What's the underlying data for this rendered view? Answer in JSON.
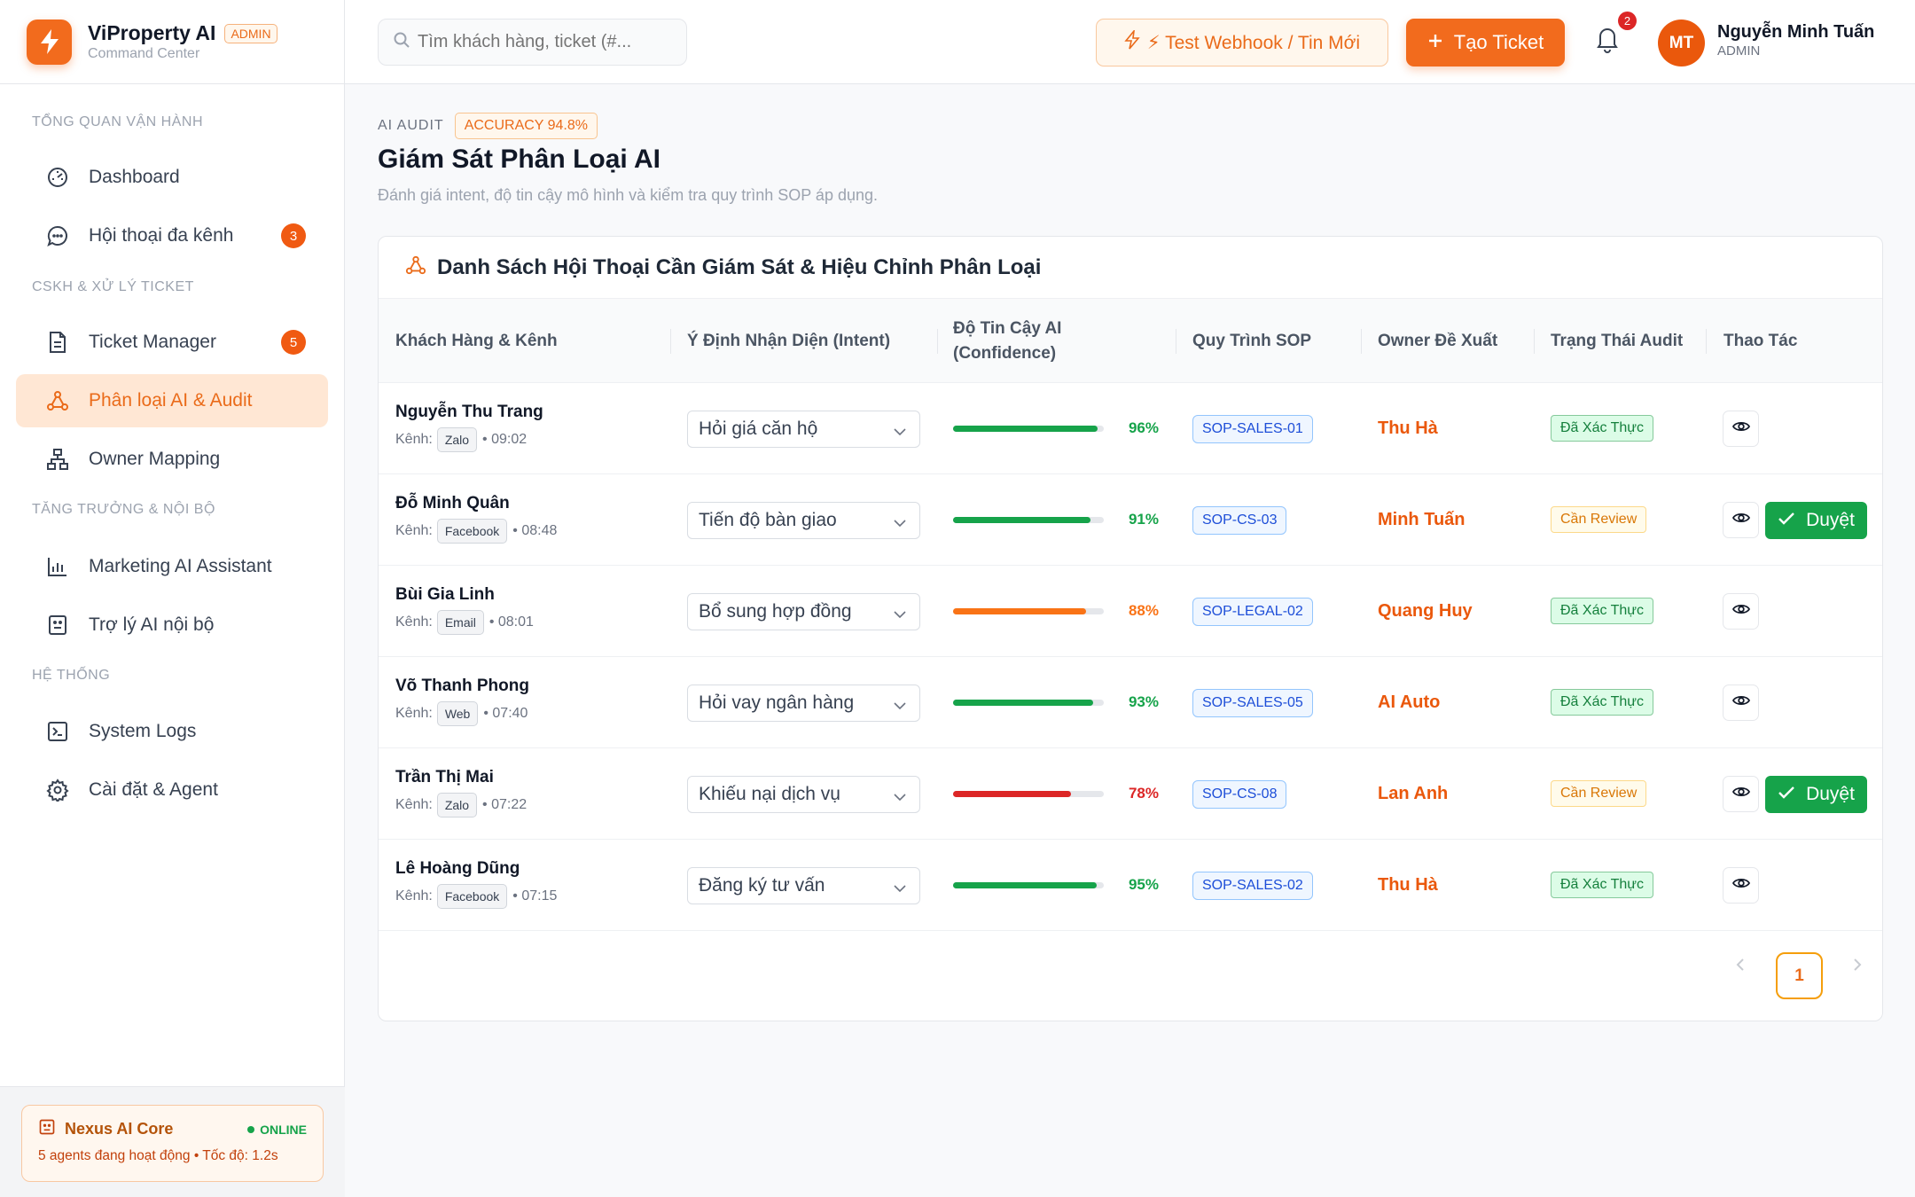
{
  "brand": {
    "name": "ViProperty AI",
    "badge": "ADMIN",
    "subtitle": "Command Center"
  },
  "sidebar": {
    "sections": [
      {
        "title": "TỔNG QUAN VẬN HÀNH"
      },
      {
        "title": "CSKH & XỬ LÝ TICKET"
      },
      {
        "title": "TĂNG TRƯỞNG & NỘI BỘ"
      },
      {
        "title": "HỆ THỐNG"
      }
    ],
    "items": [
      {
        "label": "Dashboard",
        "icon": "gauge-icon"
      },
      {
        "label": "Hội thoại đa kênh",
        "icon": "chat-icon",
        "count": "3"
      },
      {
        "label": "Ticket Manager",
        "icon": "document-icon",
        "count": "5"
      },
      {
        "label": "Phân loại AI & Audit",
        "icon": "network-icon",
        "active": true
      },
      {
        "label": "Owner Mapping",
        "icon": "hierarchy-icon"
      },
      {
        "label": "Marketing AI Assistant",
        "icon": "bar-chart-icon"
      },
      {
        "label": "Trợ lý AI nội bộ",
        "icon": "bot-icon"
      },
      {
        "label": "System Logs",
        "icon": "terminal-icon"
      },
      {
        "label": "Cài đặt & Agent",
        "icon": "gear-icon"
      }
    ],
    "footer": {
      "title": "Nexus AI Core",
      "status": "ONLINE",
      "desc": "5 agents đang hoạt động • Tốc độ: 1.2s"
    }
  },
  "topbar": {
    "search_placeholder": "Tìm khách hàng, ticket (#...",
    "webhook_label": "⚡ Test Webhook / Tin Mới",
    "create_label": "Tạo Ticket",
    "notification_count": "2",
    "user": {
      "initials": "MT",
      "name": "Nguyễn Minh Tuấn",
      "role": "ADMIN"
    }
  },
  "page": {
    "eyebrow": "AI AUDIT",
    "accuracy_badge": "ACCURACY 94.8%",
    "title": "Giám Sát Phân Loại AI",
    "description": "Đánh giá intent, độ tin cậy mô hình và kiểm tra quy trình SOP áp dụng."
  },
  "table": {
    "title": "Danh Sách Hội Thoại Cần Giám Sát & Hiệu Chỉnh Phân Loại",
    "headers": {
      "customer": "Khách Hàng & Kênh",
      "intent": "Ý Định Nhận Diện (Intent)",
      "confidence_line1": "Độ Tin Cậy AI",
      "confidence_line2": "(Confidence)",
      "sop": "Quy Trình SOP",
      "owner": "Owner Đề Xuất",
      "status": "Trạng Thái Audit",
      "actions": "Thao Tác"
    },
    "channel_label": "Kênh:",
    "approve_label": "Duyệt",
    "rows": [
      {
        "name": "Nguyễn Thu Trang",
        "channel": "Zalo",
        "time": "• 09:02",
        "intent": "Hỏi giá căn hộ",
        "confidence": 96,
        "confidence_text": "96%",
        "level": "high",
        "sop": "SOP-SALES-01",
        "owner": "Thu Hà",
        "status": "Đã Xác Thực",
        "status_type": "ok"
      },
      {
        "name": "Đỗ Minh Quân",
        "channel": "Facebook",
        "time": "• 08:48",
        "intent": "Tiến độ bàn giao",
        "confidence": 91,
        "confidence_text": "91%",
        "level": "high",
        "sop": "SOP-CS-03",
        "owner": "Minh Tuấn",
        "status": "Cần Review",
        "status_type": "review"
      },
      {
        "name": "Bùi Gia Linh",
        "channel": "Email",
        "time": "• 08:01",
        "intent": "Bổ sung hợp đồng",
        "confidence": 88,
        "confidence_text": "88%",
        "level": "medium",
        "sop": "SOP-LEGAL-02",
        "owner": "Quang Huy",
        "status": "Đã Xác Thực",
        "status_type": "ok"
      },
      {
        "name": "Võ Thanh Phong",
        "channel": "Web",
        "time": "• 07:40",
        "intent": "Hỏi vay ngân hàng",
        "confidence": 93,
        "confidence_text": "93%",
        "level": "high",
        "sop": "SOP-SALES-05",
        "owner": "AI Auto",
        "status": "Đã Xác Thực",
        "status_type": "ok"
      },
      {
        "name": "Trần Thị Mai",
        "channel": "Zalo",
        "time": "• 07:22",
        "intent": "Khiếu nại dịch vụ",
        "confidence": 78,
        "confidence_text": "78%",
        "level": "low",
        "sop": "SOP-CS-08",
        "owner": "Lan Anh",
        "status": "Cần Review",
        "status_type": "review"
      },
      {
        "name": "Lê Hoàng Dũng",
        "channel": "Facebook",
        "time": "• 07:15",
        "intent": "Đăng ký tư vấn",
        "confidence": 95,
        "confidence_text": "95%",
        "level": "high",
        "sop": "SOP-SALES-02",
        "owner": "Thu Hà",
        "status": "Đã Xác Thực",
        "status_type": "ok"
      }
    ],
    "pagination": {
      "current": "1"
    }
  },
  "colors": {
    "accent": "#f26b1d",
    "high": "#16a34a",
    "medium": "#f97316",
    "low": "#dc2626"
  }
}
